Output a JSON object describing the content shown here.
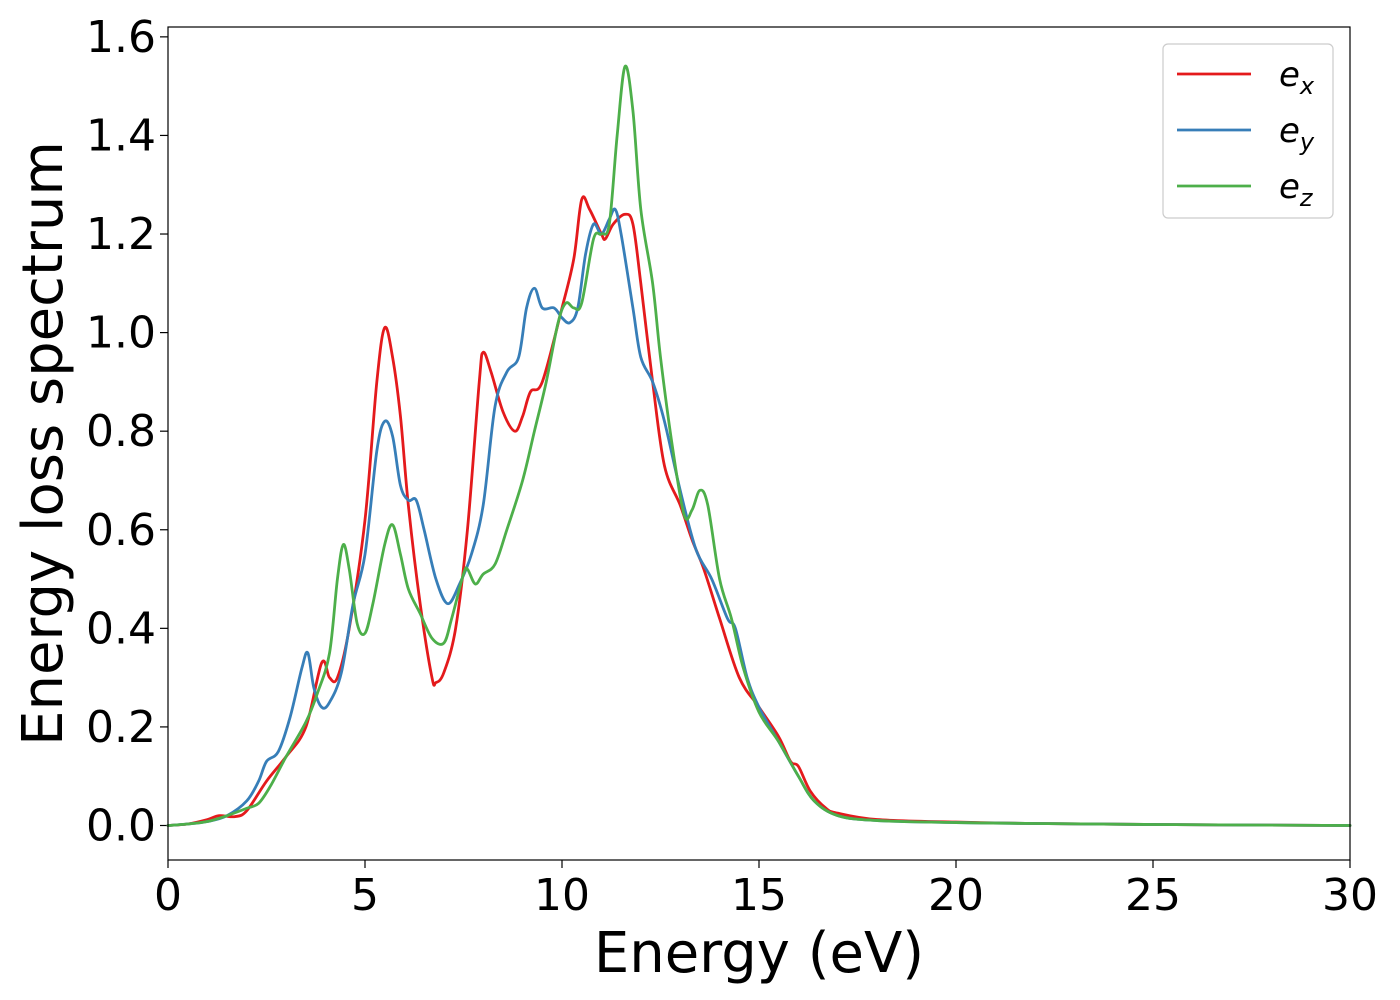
{
  "chart_data": {
    "type": "line",
    "title": "",
    "xlabel": "Energy (eV)",
    "ylabel": "Energy loss spectrum",
    "xlim": [
      0,
      30
    ],
    "ylim": [
      -0.07,
      1.62
    ],
    "xticks": [
      0,
      5,
      10,
      15,
      20,
      25,
      30
    ],
    "yticks": [
      0.0,
      0.2,
      0.4,
      0.6,
      0.8,
      1.0,
      1.2,
      1.4,
      1.6
    ],
    "xtick_labels": [
      "0",
      "5",
      "10",
      "15",
      "20",
      "25",
      "30"
    ],
    "ytick_labels": [
      "0.0",
      "0.2",
      "0.4",
      "0.6",
      "0.8",
      "1.0",
      "1.2",
      "1.4",
      "1.6"
    ],
    "grid": false,
    "legend_position": "top-right",
    "series": [
      {
        "name": "e_x",
        "legend_base": "e",
        "legend_sub": "x",
        "color": "#e41a1c",
        "points": [
          [
            0,
            0
          ],
          [
            0.5,
            0.003
          ],
          [
            1.0,
            0.012
          ],
          [
            1.3,
            0.02
          ],
          [
            1.7,
            0.018
          ],
          [
            2.0,
            0.03
          ],
          [
            2.5,
            0.09
          ],
          [
            3.0,
            0.14
          ],
          [
            3.5,
            0.2
          ],
          [
            3.9,
            0.33
          ],
          [
            4.1,
            0.3
          ],
          [
            4.3,
            0.3
          ],
          [
            4.6,
            0.4
          ],
          [
            5.0,
            0.62
          ],
          [
            5.3,
            0.9
          ],
          [
            5.5,
            1.01
          ],
          [
            5.7,
            0.95
          ],
          [
            5.9,
            0.83
          ],
          [
            6.1,
            0.65
          ],
          [
            6.4,
            0.45
          ],
          [
            6.7,
            0.3
          ],
          [
            6.8,
            0.29
          ],
          [
            7.0,
            0.31
          ],
          [
            7.3,
            0.4
          ],
          [
            7.6,
            0.6
          ],
          [
            7.9,
            0.9
          ],
          [
            8.0,
            0.96
          ],
          [
            8.2,
            0.92
          ],
          [
            8.5,
            0.84
          ],
          [
            8.8,
            0.8
          ],
          [
            9.0,
            0.83
          ],
          [
            9.2,
            0.88
          ],
          [
            9.5,
            0.9
          ],
          [
            10.0,
            1.05
          ],
          [
            10.3,
            1.15
          ],
          [
            10.5,
            1.27
          ],
          [
            10.7,
            1.25
          ],
          [
            11.0,
            1.2
          ],
          [
            11.1,
            1.19
          ],
          [
            11.3,
            1.22
          ],
          [
            11.6,
            1.24
          ],
          [
            11.8,
            1.22
          ],
          [
            12.0,
            1.1
          ],
          [
            12.3,
            0.9
          ],
          [
            12.6,
            0.73
          ],
          [
            13.0,
            0.65
          ],
          [
            13.3,
            0.58
          ],
          [
            13.6,
            0.52
          ],
          [
            14.0,
            0.42
          ],
          [
            14.5,
            0.3
          ],
          [
            15.0,
            0.24
          ],
          [
            15.5,
            0.18
          ],
          [
            15.8,
            0.13
          ],
          [
            16.0,
            0.12
          ],
          [
            16.3,
            0.07
          ],
          [
            16.7,
            0.035
          ],
          [
            17.0,
            0.025
          ],
          [
            18.0,
            0.012
          ],
          [
            20.0,
            0.007
          ],
          [
            22.0,
            0.004
          ],
          [
            25.0,
            0.002
          ],
          [
            30.0,
            0.0
          ]
        ]
      },
      {
        "name": "e_y",
        "legend_base": "e",
        "legend_sub": "y",
        "color": "#377eb8",
        "points": [
          [
            0,
            0
          ],
          [
            0.5,
            0.003
          ],
          [
            1.0,
            0.008
          ],
          [
            1.5,
            0.02
          ],
          [
            2.0,
            0.05
          ],
          [
            2.3,
            0.09
          ],
          [
            2.5,
            0.13
          ],
          [
            2.8,
            0.15
          ],
          [
            3.1,
            0.22
          ],
          [
            3.4,
            0.32
          ],
          [
            3.55,
            0.35
          ],
          [
            3.7,
            0.28
          ],
          [
            3.9,
            0.24
          ],
          [
            4.1,
            0.25
          ],
          [
            4.4,
            0.31
          ],
          [
            4.7,
            0.45
          ],
          [
            5.0,
            0.55
          ],
          [
            5.3,
            0.76
          ],
          [
            5.5,
            0.82
          ],
          [
            5.7,
            0.79
          ],
          [
            5.9,
            0.69
          ],
          [
            6.1,
            0.66
          ],
          [
            6.3,
            0.66
          ],
          [
            6.5,
            0.6
          ],
          [
            6.8,
            0.5
          ],
          [
            7.1,
            0.45
          ],
          [
            7.4,
            0.49
          ],
          [
            7.7,
            0.55
          ],
          [
            8.0,
            0.65
          ],
          [
            8.3,
            0.85
          ],
          [
            8.6,
            0.92
          ],
          [
            8.9,
            0.95
          ],
          [
            9.1,
            1.05
          ],
          [
            9.3,
            1.09
          ],
          [
            9.5,
            1.05
          ],
          [
            9.8,
            1.05
          ],
          [
            10.0,
            1.03
          ],
          [
            10.2,
            1.02
          ],
          [
            10.4,
            1.05
          ],
          [
            10.6,
            1.16
          ],
          [
            10.8,
            1.22
          ],
          [
            11.0,
            1.2
          ],
          [
            11.2,
            1.23
          ],
          [
            11.35,
            1.25
          ],
          [
            11.5,
            1.2
          ],
          [
            11.8,
            1.05
          ],
          [
            12.0,
            0.95
          ],
          [
            12.3,
            0.9
          ],
          [
            12.6,
            0.82
          ],
          [
            13.0,
            0.68
          ],
          [
            13.4,
            0.56
          ],
          [
            13.8,
            0.5
          ],
          [
            14.2,
            0.42
          ],
          [
            14.4,
            0.4
          ],
          [
            14.7,
            0.3
          ],
          [
            15.0,
            0.24
          ],
          [
            15.5,
            0.17
          ],
          [
            16.0,
            0.1
          ],
          [
            16.4,
            0.05
          ],
          [
            17.0,
            0.02
          ],
          [
            18.0,
            0.01
          ],
          [
            20.0,
            0.006
          ],
          [
            22.0,
            0.004
          ],
          [
            25.0,
            0.002
          ],
          [
            30.0,
            0.0
          ]
        ]
      },
      {
        "name": "e_z",
        "legend_base": "e",
        "legend_sub": "z",
        "color": "#4daf4a",
        "points": [
          [
            0,
            0
          ],
          [
            0.5,
            0.003
          ],
          [
            1.0,
            0.008
          ],
          [
            1.5,
            0.02
          ],
          [
            2.0,
            0.035
          ],
          [
            2.3,
            0.045
          ],
          [
            2.6,
            0.08
          ],
          [
            3.0,
            0.14
          ],
          [
            3.5,
            0.21
          ],
          [
            3.8,
            0.27
          ],
          [
            4.1,
            0.35
          ],
          [
            4.3,
            0.5
          ],
          [
            4.45,
            0.57
          ],
          [
            4.6,
            0.52
          ],
          [
            4.8,
            0.41
          ],
          [
            5.0,
            0.39
          ],
          [
            5.2,
            0.45
          ],
          [
            5.5,
            0.57
          ],
          [
            5.7,
            0.61
          ],
          [
            5.9,
            0.55
          ],
          [
            6.1,
            0.48
          ],
          [
            6.4,
            0.43
          ],
          [
            6.7,
            0.38
          ],
          [
            7.0,
            0.37
          ],
          [
            7.2,
            0.42
          ],
          [
            7.5,
            0.51
          ],
          [
            7.6,
            0.52
          ],
          [
            7.8,
            0.49
          ],
          [
            8.0,
            0.51
          ],
          [
            8.3,
            0.53
          ],
          [
            8.6,
            0.6
          ],
          [
            9.0,
            0.7
          ],
          [
            9.3,
            0.8
          ],
          [
            9.6,
            0.9
          ],
          [
            9.9,
            1.02
          ],
          [
            10.1,
            1.06
          ],
          [
            10.3,
            1.05
          ],
          [
            10.5,
            1.06
          ],
          [
            10.8,
            1.19
          ],
          [
            11.0,
            1.2
          ],
          [
            11.2,
            1.22
          ],
          [
            11.4,
            1.4
          ],
          [
            11.6,
            1.54
          ],
          [
            11.8,
            1.45
          ],
          [
            12.0,
            1.25
          ],
          [
            12.3,
            1.1
          ],
          [
            12.5,
            0.95
          ],
          [
            12.8,
            0.77
          ],
          [
            13.1,
            0.63
          ],
          [
            13.3,
            0.64
          ],
          [
            13.5,
            0.68
          ],
          [
            13.7,
            0.65
          ],
          [
            14.0,
            0.5
          ],
          [
            14.3,
            0.42
          ],
          [
            14.6,
            0.32
          ],
          [
            15.0,
            0.23
          ],
          [
            15.5,
            0.17
          ],
          [
            16.0,
            0.1
          ],
          [
            16.4,
            0.05
          ],
          [
            17.0,
            0.02
          ],
          [
            18.0,
            0.01
          ],
          [
            20.0,
            0.006
          ],
          [
            22.0,
            0.004
          ],
          [
            25.0,
            0.002
          ],
          [
            30.0,
            0.0
          ]
        ]
      }
    ]
  }
}
